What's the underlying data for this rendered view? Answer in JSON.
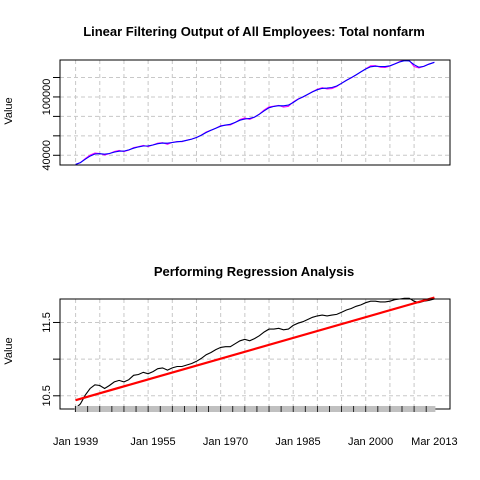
{
  "chart_data": [
    {
      "type": "line",
      "title": "Linear Filtering Output of  All Employees: Total nonfarm",
      "xlabel": "",
      "ylabel": "Value",
      "x_range": [
        1939,
        2013.2
      ],
      "ylim": [
        30000,
        138000
      ],
      "yticks": [
        40000,
        60000,
        80000,
        100000,
        120000
      ],
      "ytick_labels": [
        "40000",
        "",
        "",
        "100000",
        ""
      ],
      "grid": true,
      "series": [
        {
          "color": "#ff00ff",
          "x": [
            1939,
            1940,
            1941,
            1942,
            1943,
            1944,
            1945,
            1946,
            1947,
            1948,
            1949,
            1950,
            1951,
            1952,
            1953,
            1954,
            1955,
            1956,
            1957,
            1958,
            1959,
            1960,
            1961,
            1962,
            1963,
            1964,
            1965,
            1966,
            1967,
            1968,
            1969,
            1970,
            1971,
            1972,
            1973,
            1974,
            1975,
            1976,
            1977,
            1978,
            1979,
            1980,
            1981,
            1982,
            1983,
            1984,
            1985,
            1986,
            1987,
            1988,
            1989,
            1990,
            1991,
            1992,
            1993,
            1994,
            1995,
            1996,
            1997,
            1998,
            1999,
            2000,
            2001,
            2002,
            2003,
            2004,
            2005,
            2006,
            2007,
            2008,
            2009,
            2010,
            2011,
            2012,
            2013.2
          ],
          "values": [
            30600,
            32400,
            36600,
            40200,
            42300,
            41800,
            40200,
            41700,
            43900,
            44900,
            43800,
            45300,
            47900,
            48800,
            50200,
            48900,
            50700,
            52400,
            52900,
            51300,
            53200,
            54200,
            54000,
            55500,
            56600,
            58300,
            60800,
            63900,
            65800,
            67900,
            70400,
            70900,
            71200,
            73700,
            76800,
            78300,
            76900,
            79300,
            82400,
            86700,
            89800,
            90500,
            91300,
            89600,
            90300,
            94800,
            97900,
            99800,
            102500,
            105500,
            108000,
            109500,
            108300,
            108600,
            110700,
            114100,
            117200,
            119600,
            122700,
            125900,
            128900,
            132000,
            132100,
            130600,
            130300,
            131700,
            134000,
            136400,
            137900,
            137500,
            131300,
            129900,
            131500,
            133700,
            135600
          ]
        },
        {
          "color": "#0000ff",
          "x": [
            1939,
            1940,
            1941,
            1942,
            1943,
            1944,
            1945,
            1946,
            1947,
            1948,
            1949,
            1950,
            1951,
            1952,
            1953,
            1954,
            1955,
            1956,
            1957,
            1958,
            1959,
            1960,
            1961,
            1962,
            1963,
            1964,
            1965,
            1966,
            1967,
            1968,
            1969,
            1970,
            1971,
            1972,
            1973,
            1974,
            1975,
            1976,
            1977,
            1978,
            1979,
            1980,
            1981,
            1982,
            1983,
            1984,
            1985,
            1986,
            1987,
            1988,
            1989,
            1990,
            1991,
            1992,
            1993,
            1994,
            1995,
            1996,
            1997,
            1998,
            1999,
            2000,
            2001,
            2002,
            2003,
            2004,
            2005,
            2006,
            2007,
            2008,
            2009,
            2010,
            2011,
            2012,
            2013.2
          ],
          "values": [
            30600,
            32500,
            36000,
            39200,
            41300,
            41600,
            41100,
            41800,
            43300,
            44200,
            44300,
            45500,
            47300,
            48600,
            49500,
            49600,
            50600,
            51900,
            52500,
            52400,
            53100,
            53900,
            54400,
            55400,
            56600,
            58300,
            60700,
            63400,
            65700,
            67900,
            69900,
            71000,
            71900,
            73800,
            76100,
            77300,
            77900,
            79300,
            82300,
            85800,
            88800,
            90300,
            91000,
            90900,
            91600,
            94300,
            97600,
            100000,
            102600,
            105200,
            107500,
            108800,
            109100,
            109700,
            111300,
            114000,
            117000,
            119800,
            122700,
            125800,
            128700,
            131000,
            131600,
            131300,
            131200,
            132000,
            133900,
            135900,
            137300,
            137000,
            133200,
            130600,
            131400,
            133600,
            135600
          ]
        }
      ]
    },
    {
      "type": "line",
      "title": "Performing Regression Analysis",
      "xlabel": "",
      "ylabel": "Value",
      "x_range": [
        1939,
        2013.2
      ],
      "ylim": [
        10.32,
        11.82
      ],
      "yticks": [
        10.5,
        11.0,
        11.5
      ],
      "ytick_labels": [
        "10.5",
        "",
        "11.5"
      ],
      "xtick_labels": [
        "Jan 1939",
        "Jan 1955",
        "Jan 1970",
        "Jan 1985",
        "Jan 2000",
        "Mar 2013"
      ],
      "xtick_positions": [
        1939,
        1955,
        1970,
        1985,
        2000,
        2013.2
      ],
      "grid": true,
      "series": [
        {
          "color": "#000000",
          "x": [
            1939,
            1940,
            1941,
            1942,
            1943,
            1944,
            1945,
            1946,
            1947,
            1948,
            1949,
            1950,
            1951,
            1952,
            1953,
            1954,
            1955,
            1956,
            1957,
            1958,
            1959,
            1960,
            1961,
            1962,
            1963,
            1964,
            1965,
            1966,
            1967,
            1968,
            1969,
            1970,
            1971,
            1972,
            1973,
            1974,
            1975,
            1976,
            1977,
            1978,
            1979,
            1980,
            1981,
            1982,
            1983,
            1984,
            1985,
            1986,
            1987,
            1988,
            1989,
            1990,
            1991,
            1992,
            1993,
            1994,
            1995,
            1996,
            1997,
            1998,
            1999,
            2000,
            2001,
            2002,
            2003,
            2004,
            2005,
            2006,
            2007,
            2008,
            2009,
            2010,
            2011,
            2012,
            2013.2
          ],
          "values": [
            10.33,
            10.39,
            10.51,
            10.6,
            10.65,
            10.64,
            10.6,
            10.64,
            10.69,
            10.71,
            10.69,
            10.72,
            10.78,
            10.79,
            10.82,
            10.8,
            10.83,
            10.87,
            10.88,
            10.85,
            10.88,
            10.9,
            10.9,
            10.92,
            10.94,
            10.97,
            11.01,
            11.06,
            11.09,
            11.13,
            11.16,
            11.17,
            11.17,
            11.21,
            11.25,
            11.27,
            11.25,
            11.28,
            11.32,
            11.37,
            11.41,
            11.41,
            11.42,
            11.4,
            11.41,
            11.46,
            11.49,
            11.51,
            11.54,
            11.57,
            11.59,
            11.6,
            11.59,
            11.6,
            11.61,
            11.64,
            11.67,
            11.69,
            11.72,
            11.74,
            11.77,
            11.79,
            11.79,
            11.78,
            11.78,
            11.79,
            11.81,
            11.82,
            11.83,
            11.83,
            11.79,
            11.77,
            11.79,
            11.8,
            11.82
          ]
        },
        {
          "color": "#ff0000",
          "x": [
            1939,
            2013.2
          ],
          "values": [
            10.44,
            11.84
          ]
        }
      ]
    }
  ]
}
